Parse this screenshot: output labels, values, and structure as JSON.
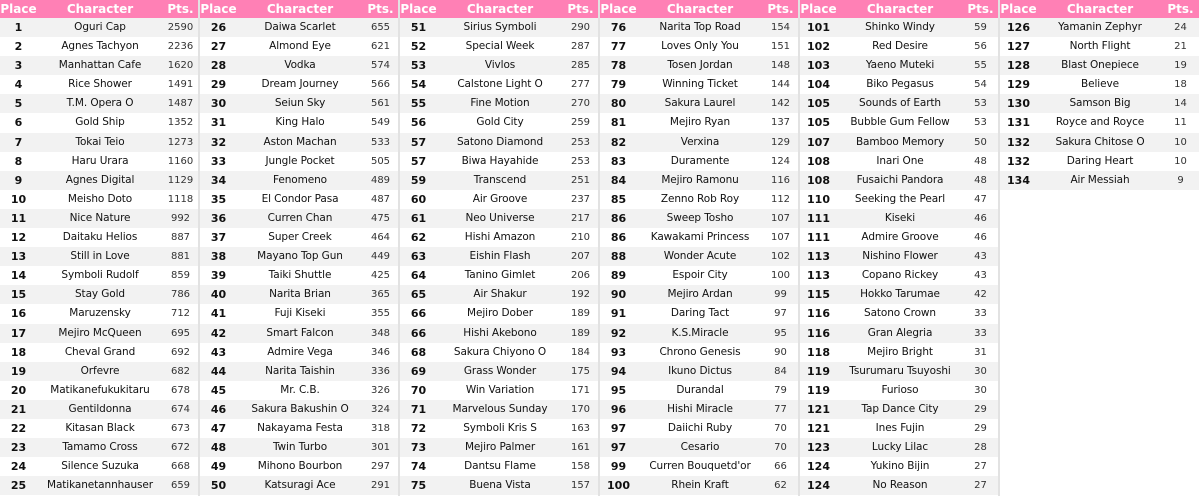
{
  "header": {
    "place": "Place",
    "character": "Character",
    "points": "Pts."
  },
  "colors": {
    "header_bg": "#ff80b5",
    "row_alt": "#f2f2f2"
  },
  "groups": [
    [
      [
        "1",
        "Oguri Cap",
        "2590"
      ],
      [
        "2",
        "Agnes Tachyon",
        "2236"
      ],
      [
        "3",
        "Manhattan Cafe",
        "1620"
      ],
      [
        "4",
        "Rice Shower",
        "1491"
      ],
      [
        "5",
        "T.M. Opera O",
        "1487"
      ],
      [
        "6",
        "Gold Ship",
        "1352"
      ],
      [
        "7",
        "Tokai Teio",
        "1273"
      ],
      [
        "8",
        "Haru Urara",
        "1160"
      ],
      [
        "9",
        "Agnes Digital",
        "1129"
      ],
      [
        "10",
        "Meisho Doto",
        "1118"
      ],
      [
        "11",
        "Nice Nature",
        "992"
      ],
      [
        "12",
        "Daitaku Helios",
        "887"
      ],
      [
        "13",
        "Still in Love",
        "881"
      ],
      [
        "14",
        "Symboli Rudolf",
        "859"
      ],
      [
        "15",
        "Stay Gold",
        "786"
      ],
      [
        "16",
        "Maruzensky",
        "712"
      ],
      [
        "17",
        "Mejiro McQueen",
        "695"
      ],
      [
        "18",
        "Cheval Grand",
        "692"
      ],
      [
        "19",
        "Orfevre",
        "682"
      ],
      [
        "20",
        "Matikanefukukitaru",
        "678"
      ],
      [
        "21",
        "Gentildonna",
        "674"
      ],
      [
        "22",
        "Kitasan Black",
        "673"
      ],
      [
        "23",
        "Tamamo Cross",
        "672"
      ],
      [
        "24",
        "Silence Suzuka",
        "668"
      ],
      [
        "25",
        "Matikanetannhauser",
        "659"
      ]
    ],
    [
      [
        "26",
        "Daiwa Scarlet",
        "655"
      ],
      [
        "27",
        "Almond Eye",
        "621"
      ],
      [
        "28",
        "Vodka",
        "574"
      ],
      [
        "29",
        "Dream Journey",
        "566"
      ],
      [
        "30",
        "Seiun Sky",
        "561"
      ],
      [
        "31",
        "King Halo",
        "549"
      ],
      [
        "32",
        "Aston Machan",
        "533"
      ],
      [
        "33",
        "Jungle Pocket",
        "505"
      ],
      [
        "34",
        "Fenomeno",
        "489"
      ],
      [
        "35",
        "El Condor Pasa",
        "487"
      ],
      [
        "36",
        "Curren Chan",
        "475"
      ],
      [
        "37",
        "Super Creek",
        "464"
      ],
      [
        "38",
        "Mayano Top Gun",
        "449"
      ],
      [
        "39",
        "Taiki Shuttle",
        "425"
      ],
      [
        "40",
        "Narita Brian",
        "365"
      ],
      [
        "41",
        "Fuji Kiseki",
        "355"
      ],
      [
        "42",
        "Smart Falcon",
        "348"
      ],
      [
        "43",
        "Admire Vega",
        "346"
      ],
      [
        "44",
        "Narita Taishin",
        "336"
      ],
      [
        "45",
        "Mr. C.B.",
        "326"
      ],
      [
        "46",
        "Sakura Bakushin O",
        "324"
      ],
      [
        "47",
        "Nakayama Festa",
        "318"
      ],
      [
        "48",
        "Twin Turbo",
        "301"
      ],
      [
        "49",
        "Mihono Bourbon",
        "297"
      ],
      [
        "50",
        "Katsuragi Ace",
        "291"
      ]
    ],
    [
      [
        "51",
        "Sirius Symboli",
        "290"
      ],
      [
        "52",
        "Special Week",
        "287"
      ],
      [
        "53",
        "Vivlos",
        "285"
      ],
      [
        "54",
        "Calstone Light O",
        "277"
      ],
      [
        "55",
        "Fine Motion",
        "270"
      ],
      [
        "56",
        "Gold City",
        "259"
      ],
      [
        "57",
        "Satono Diamond",
        "253"
      ],
      [
        "57",
        "Biwa Hayahide",
        "253"
      ],
      [
        "59",
        "Transcend",
        "251"
      ],
      [
        "60",
        "Air Groove",
        "237"
      ],
      [
        "61",
        "Neo Universe",
        "217"
      ],
      [
        "62",
        "Hishi Amazon",
        "210"
      ],
      [
        "63",
        "Eishin Flash",
        "207"
      ],
      [
        "64",
        "Tanino Gimlet",
        "206"
      ],
      [
        "65",
        "Air Shakur",
        "192"
      ],
      [
        "66",
        "Mejiro Dober",
        "189"
      ],
      [
        "66",
        "Hishi Akebono",
        "189"
      ],
      [
        "68",
        "Sakura Chiyono O",
        "184"
      ],
      [
        "69",
        "Grass Wonder",
        "175"
      ],
      [
        "70",
        "Win Variation",
        "171"
      ],
      [
        "71",
        "Marvelous Sunday",
        "170"
      ],
      [
        "72",
        "Symboli Kris S",
        "163"
      ],
      [
        "73",
        "Mejiro Palmer",
        "161"
      ],
      [
        "74",
        "Dantsu Flame",
        "158"
      ],
      [
        "75",
        "Buena Vista",
        "157"
      ]
    ],
    [
      [
        "76",
        "Narita Top Road",
        "154"
      ],
      [
        "77",
        "Loves Only You",
        "151"
      ],
      [
        "78",
        "Tosen Jordan",
        "148"
      ],
      [
        "79",
        "Winning Ticket",
        "144"
      ],
      [
        "80",
        "Sakura Laurel",
        "142"
      ],
      [
        "81",
        "Mejiro Ryan",
        "137"
      ],
      [
        "82",
        "Verxina",
        "129"
      ],
      [
        "83",
        "Duramente",
        "124"
      ],
      [
        "84",
        "Mejiro Ramonu",
        "116"
      ],
      [
        "85",
        "Zenno Rob Roy",
        "112"
      ],
      [
        "86",
        "Sweep Tosho",
        "107"
      ],
      [
        "86",
        "Kawakami Princess",
        "107"
      ],
      [
        "88",
        "Wonder Acute",
        "102"
      ],
      [
        "89",
        "Espoir City",
        "100"
      ],
      [
        "90",
        "Mejiro Ardan",
        "99"
      ],
      [
        "91",
        "Daring Tact",
        "97"
      ],
      [
        "92",
        "K.S.Miracle",
        "95"
      ],
      [
        "93",
        "Chrono Genesis",
        "90"
      ],
      [
        "94",
        "Ikuno Dictus",
        "84"
      ],
      [
        "95",
        "Durandal",
        "79"
      ],
      [
        "96",
        "Hishi Miracle",
        "77"
      ],
      [
        "97",
        "Daiichi Ruby",
        "70"
      ],
      [
        "97",
        "Cesario",
        "70"
      ],
      [
        "99",
        "Curren Bouquetd'or",
        "66"
      ],
      [
        "100",
        "Rhein Kraft",
        "62"
      ]
    ],
    [
      [
        "101",
        "Shinko Windy",
        "59"
      ],
      [
        "102",
        "Red Desire",
        "56"
      ],
      [
        "103",
        "Yaeno Muteki",
        "55"
      ],
      [
        "104",
        "Biko Pegasus",
        "54"
      ],
      [
        "105",
        "Sounds of Earth",
        "53"
      ],
      [
        "105",
        "Bubble Gum Fellow",
        "53"
      ],
      [
        "107",
        "Bamboo Memory",
        "50"
      ],
      [
        "108",
        "Inari One",
        "48"
      ],
      [
        "108",
        "Fusaichi Pandora",
        "48"
      ],
      [
        "110",
        "Seeking the Pearl",
        "47"
      ],
      [
        "111",
        "Kiseki",
        "46"
      ],
      [
        "111",
        "Admire Groove",
        "46"
      ],
      [
        "113",
        "Nishino Flower",
        "43"
      ],
      [
        "113",
        "Copano Rickey",
        "43"
      ],
      [
        "115",
        "Hokko Tarumae",
        "42"
      ],
      [
        "116",
        "Satono Crown",
        "33"
      ],
      [
        "116",
        "Gran Alegria",
        "33"
      ],
      [
        "118",
        "Mejiro Bright",
        "31"
      ],
      [
        "119",
        "Tsurumaru Tsuyoshi",
        "30"
      ],
      [
        "119",
        "Furioso",
        "30"
      ],
      [
        "121",
        "Tap Dance City",
        "29"
      ],
      [
        "121",
        "Ines Fujin",
        "29"
      ],
      [
        "123",
        "Lucky Lilac",
        "28"
      ],
      [
        "124",
        "Yukino Bijin",
        "27"
      ],
      [
        "124",
        "No Reason",
        "27"
      ]
    ],
    [
      [
        "126",
        "Yamanin Zephyr",
        "24"
      ],
      [
        "127",
        "North Flight",
        "21"
      ],
      [
        "128",
        "Blast Onepiece",
        "19"
      ],
      [
        "129",
        "Believe",
        "18"
      ],
      [
        "130",
        "Samson Big",
        "14"
      ],
      [
        "131",
        "Royce and Royce",
        "11"
      ],
      [
        "132",
        "Sakura Chitose O",
        "10"
      ],
      [
        "132",
        "Daring Heart",
        "10"
      ],
      [
        "134",
        "Air Messiah",
        "9"
      ]
    ]
  ]
}
